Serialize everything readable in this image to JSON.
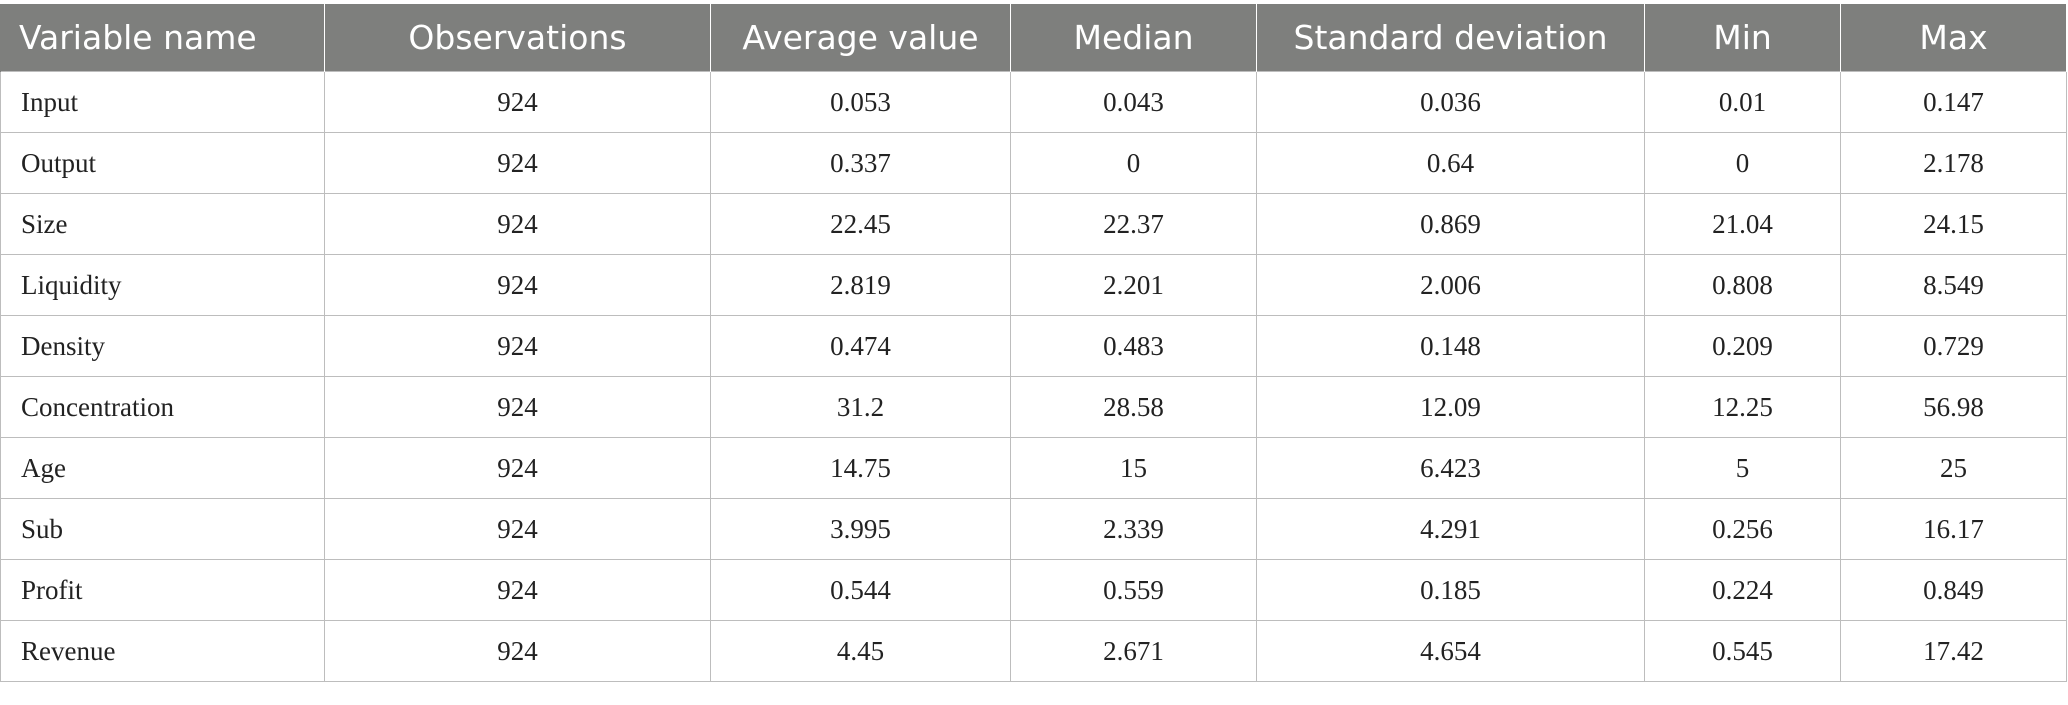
{
  "table": {
    "headers": [
      "Variable name",
      "Observations",
      "Average value",
      "Median",
      "Standard deviation",
      "Min",
      "Max"
    ],
    "rows": [
      [
        "Input",
        "924",
        "0.053",
        "0.043",
        "0.036",
        "0.01",
        "0.147"
      ],
      [
        "Output",
        "924",
        "0.337",
        "0",
        "0.64",
        "0",
        "2.178"
      ],
      [
        "Size",
        "924",
        "22.45",
        "22.37",
        "0.869",
        "21.04",
        "24.15"
      ],
      [
        "Liquidity",
        "924",
        "2.819",
        "2.201",
        "2.006",
        "0.808",
        "8.549"
      ],
      [
        "Density",
        "924",
        "0.474",
        "0.483",
        "0.148",
        "0.209",
        "0.729"
      ],
      [
        "Concentration",
        "924",
        "31.2",
        "28.58",
        "12.09",
        "12.25",
        "56.98"
      ],
      [
        "Age",
        "924",
        "14.75",
        "15",
        "6.423",
        "5",
        "25"
      ],
      [
        "Sub",
        "924",
        "3.995",
        "2.339",
        "4.291",
        "0.256",
        "16.17"
      ],
      [
        "Profit",
        "924",
        "0.544",
        "0.559",
        "0.185",
        "0.224",
        "0.849"
      ],
      [
        "Revenue",
        "924",
        "4.45",
        "2.671",
        "4.654",
        "0.545",
        "17.42"
      ]
    ]
  },
  "colors": {
    "header_background": "#7e7f7d",
    "header_text": "#ffffff",
    "grid_lines": "#bdbdbd"
  }
}
